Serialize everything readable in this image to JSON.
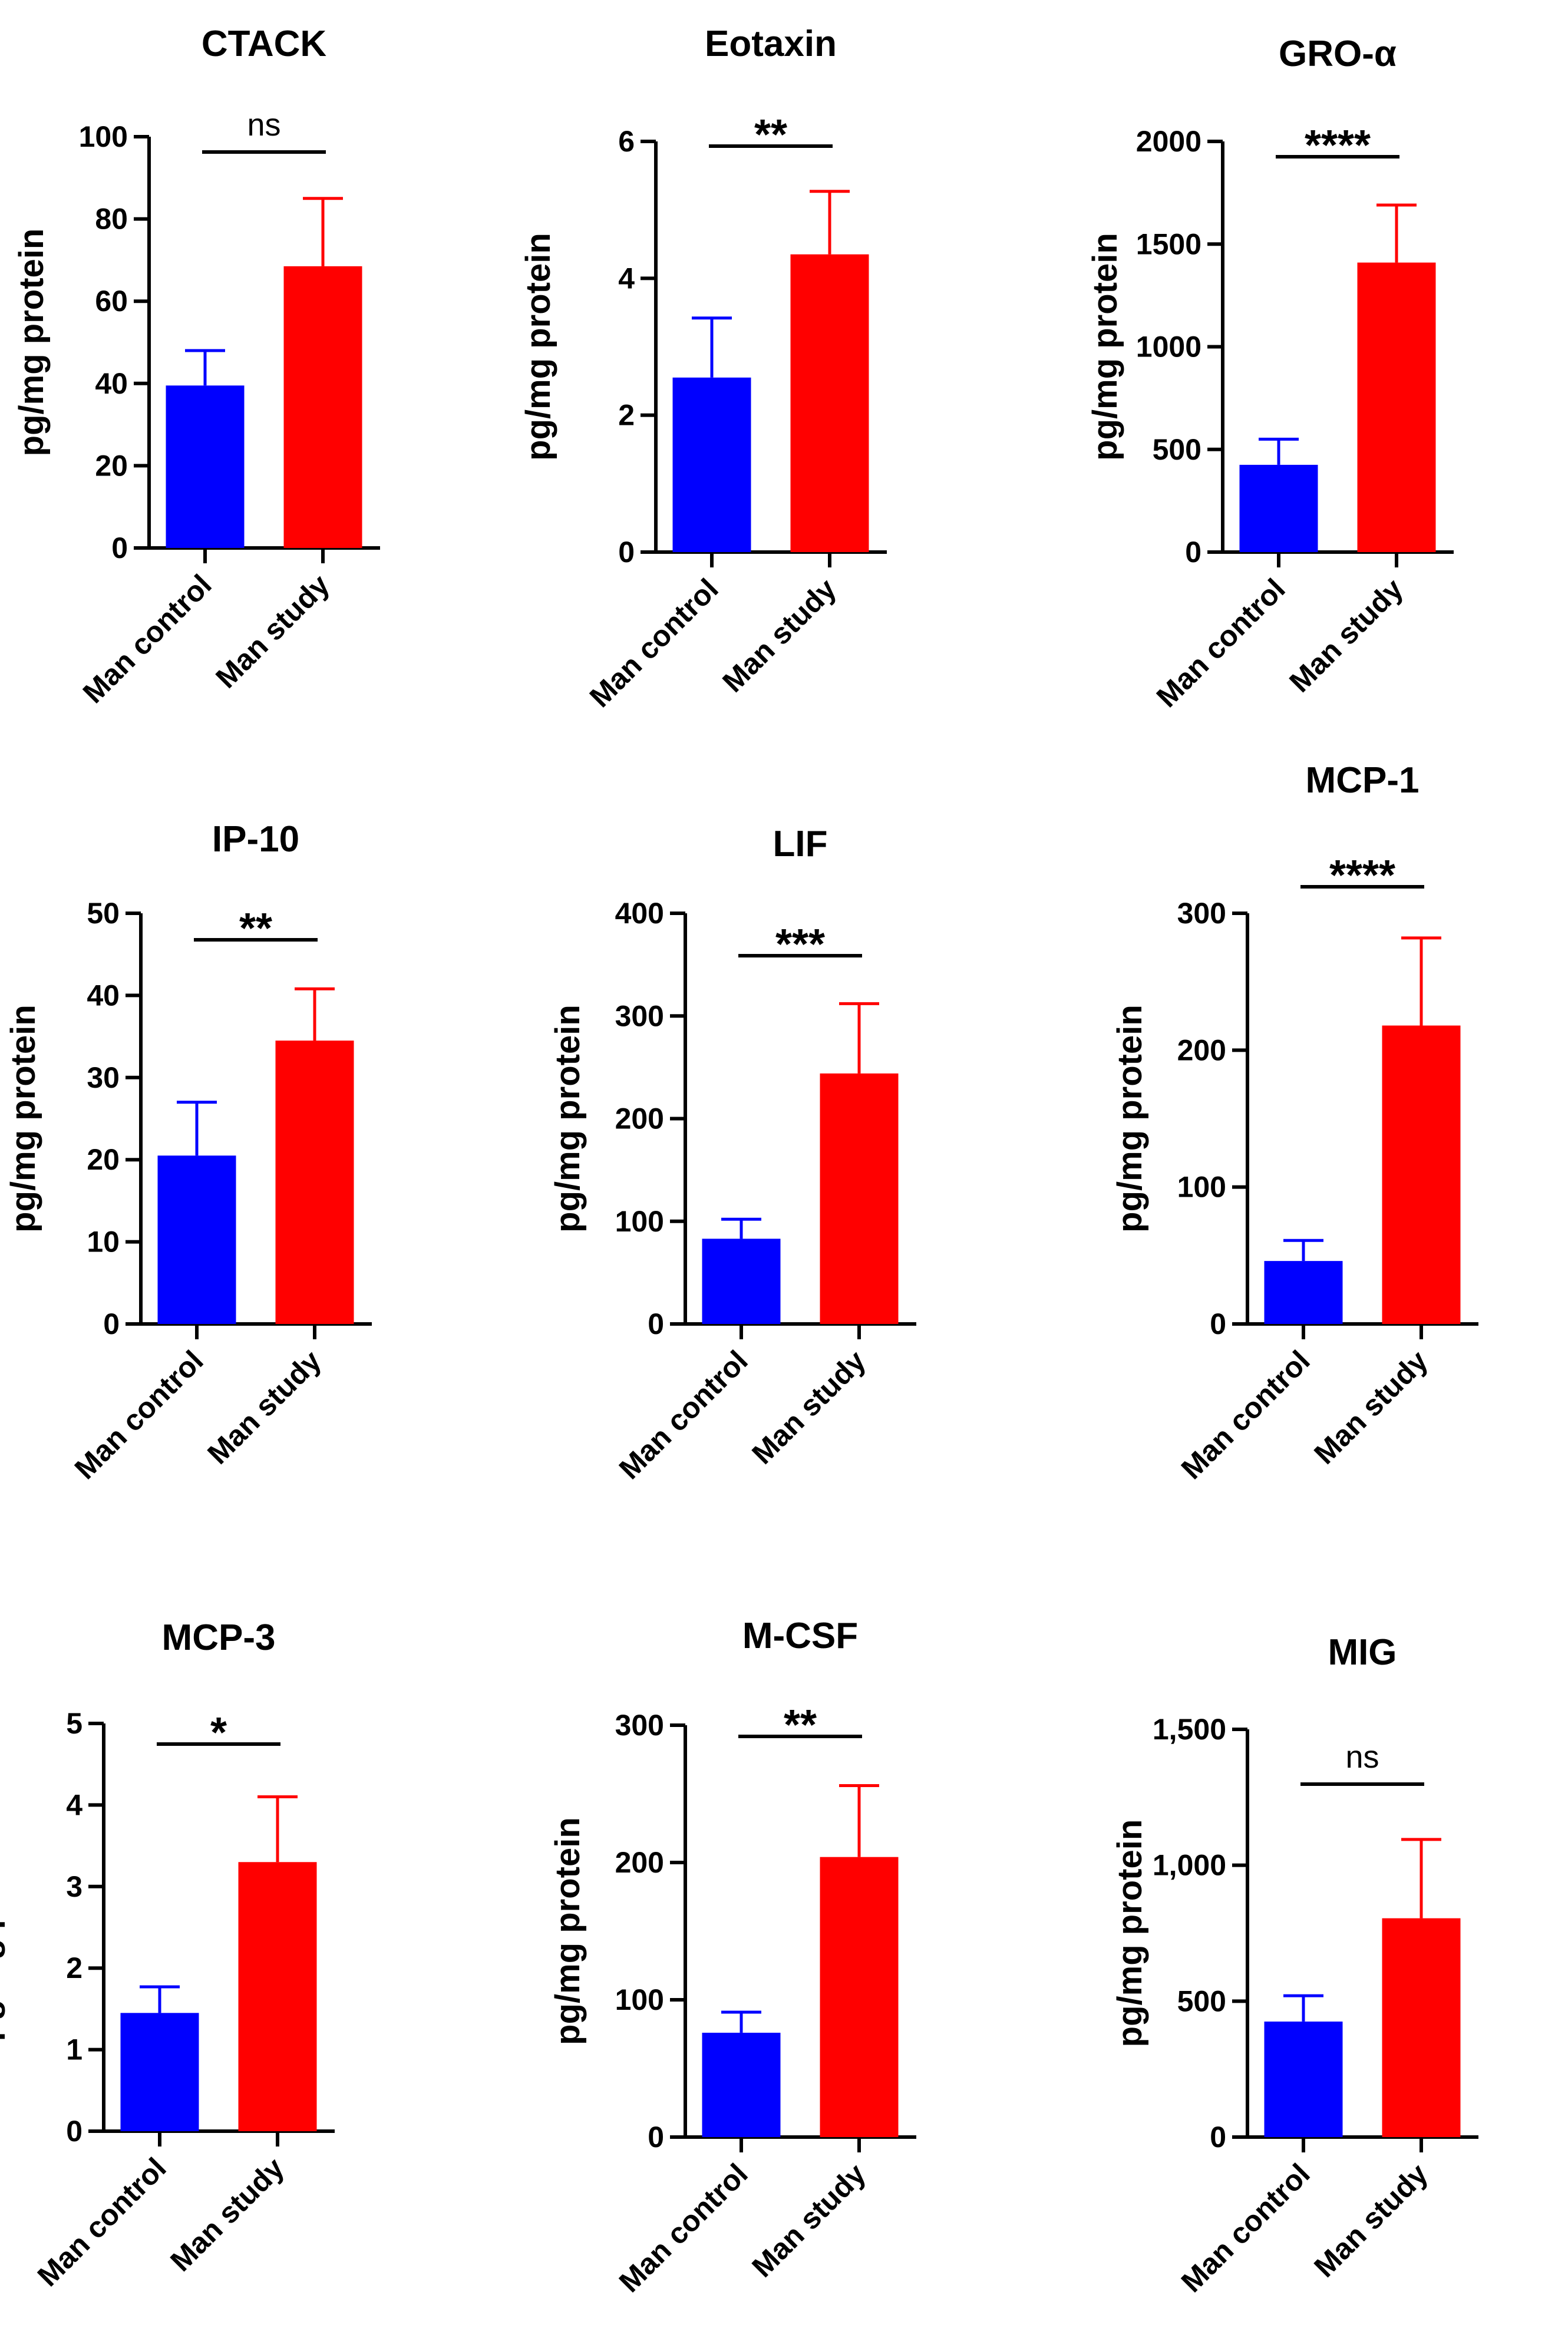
{
  "colors": {
    "control": "#0000ff",
    "study": "#ff0000",
    "axis": "#000000"
  },
  "chart_data": [
    {
      "type": "bar",
      "title": "CTACK",
      "ylabel": "pg/mg protein",
      "categories": [
        "Man control",
        "Man study"
      ],
      "values": [
        39.5,
        68.5
      ],
      "errors": [
        8.5,
        16.5
      ],
      "ylim": [
        0,
        100
      ],
      "yticks": [
        0,
        20,
        40,
        60,
        80,
        100
      ],
      "ytick_labels": [
        "0",
        "20",
        "40",
        "60",
        "80",
        "100"
      ],
      "significance": "ns"
    },
    {
      "type": "bar",
      "title": "Eotaxin",
      "ylabel": "pg/mg protein",
      "categories": [
        "Man control",
        "Man study"
      ],
      "values": [
        2.55,
        4.35
      ],
      "errors": [
        0.87,
        0.92
      ],
      "ylim": [
        0,
        6
      ],
      "yticks": [
        0,
        2,
        4,
        6
      ],
      "ytick_labels": [
        "0",
        "2",
        "4",
        "6"
      ],
      "significance": "**"
    },
    {
      "type": "bar",
      "title": "GRO-α",
      "ylabel": "pg/mg protein",
      "categories": [
        "Man control",
        "Man study"
      ],
      "values": [
        425,
        1410
      ],
      "errors": [
        125,
        280
      ],
      "ylim": [
        0,
        2000
      ],
      "yticks": [
        0,
        500,
        1000,
        1500,
        2000
      ],
      "ytick_labels": [
        "0",
        "500",
        "1000",
        "1500",
        "2000"
      ],
      "significance": "****"
    },
    {
      "type": "bar",
      "title": "IP-10",
      "ylabel": "pg/mg protein",
      "categories": [
        "Man control",
        "Man study"
      ],
      "values": [
        20.5,
        34.5
      ],
      "errors": [
        6.5,
        6.3
      ],
      "ylim": [
        0,
        50
      ],
      "yticks": [
        0,
        10,
        20,
        30,
        40,
        50
      ],
      "ytick_labels": [
        "0",
        "10",
        "20",
        "30",
        "40",
        "50"
      ],
      "significance": "**"
    },
    {
      "type": "bar",
      "title": "LIF",
      "ylabel": "pg/mg protein",
      "categories": [
        "Man control",
        "Man study"
      ],
      "values": [
        83,
        244
      ],
      "errors": [
        19,
        68
      ],
      "ylim": [
        0,
        400
      ],
      "yticks": [
        0,
        100,
        200,
        300,
        400
      ],
      "ytick_labels": [
        "0",
        "100",
        "200",
        "300",
        "400"
      ],
      "significance": "***"
    },
    {
      "type": "bar",
      "title": "MCP-1",
      "ylabel": "pg/mg protein",
      "categories": [
        "Man control",
        "Man study"
      ],
      "values": [
        46,
        218
      ],
      "errors": [
        15,
        64
      ],
      "ylim": [
        0,
        300
      ],
      "yticks": [
        0,
        100,
        200,
        300
      ],
      "ytick_labels": [
        "0",
        "100",
        "200",
        "300"
      ],
      "significance": "****"
    },
    {
      "type": "bar",
      "title": "MCP-3",
      "ylabel": "pg/mg protein",
      "categories": [
        "Man control",
        "Man study"
      ],
      "values": [
        1.45,
        3.3
      ],
      "errors": [
        0.32,
        0.8
      ],
      "ylim": [
        0,
        5
      ],
      "yticks": [
        0,
        1,
        2,
        3,
        4,
        5
      ],
      "ytick_labels": [
        "0",
        "1",
        "2",
        "3",
        "4",
        "5"
      ],
      "significance": "*"
    },
    {
      "type": "bar",
      "title": "M-CSF",
      "ylabel": "pg/mg protein",
      "categories": [
        "Man control",
        "Man study"
      ],
      "values": [
        76,
        204
      ],
      "errors": [
        15,
        52
      ],
      "ylim": [
        0,
        300
      ],
      "yticks": [
        0,
        100,
        200,
        300
      ],
      "ytick_labels": [
        "0",
        "100",
        "200",
        "300"
      ],
      "significance": "**"
    },
    {
      "type": "bar",
      "title": "MIG",
      "ylabel": "pg/mg protein",
      "categories": [
        "Man control",
        "Man study"
      ],
      "values": [
        425,
        805
      ],
      "errors": [
        95,
        290
      ],
      "ylim": [
        0,
        1500
      ],
      "yticks": [
        0,
        500,
        1000,
        1500
      ],
      "ytick_labels": [
        "0",
        "500",
        "1,000",
        "1,500"
      ],
      "significance": "ns"
    }
  ]
}
